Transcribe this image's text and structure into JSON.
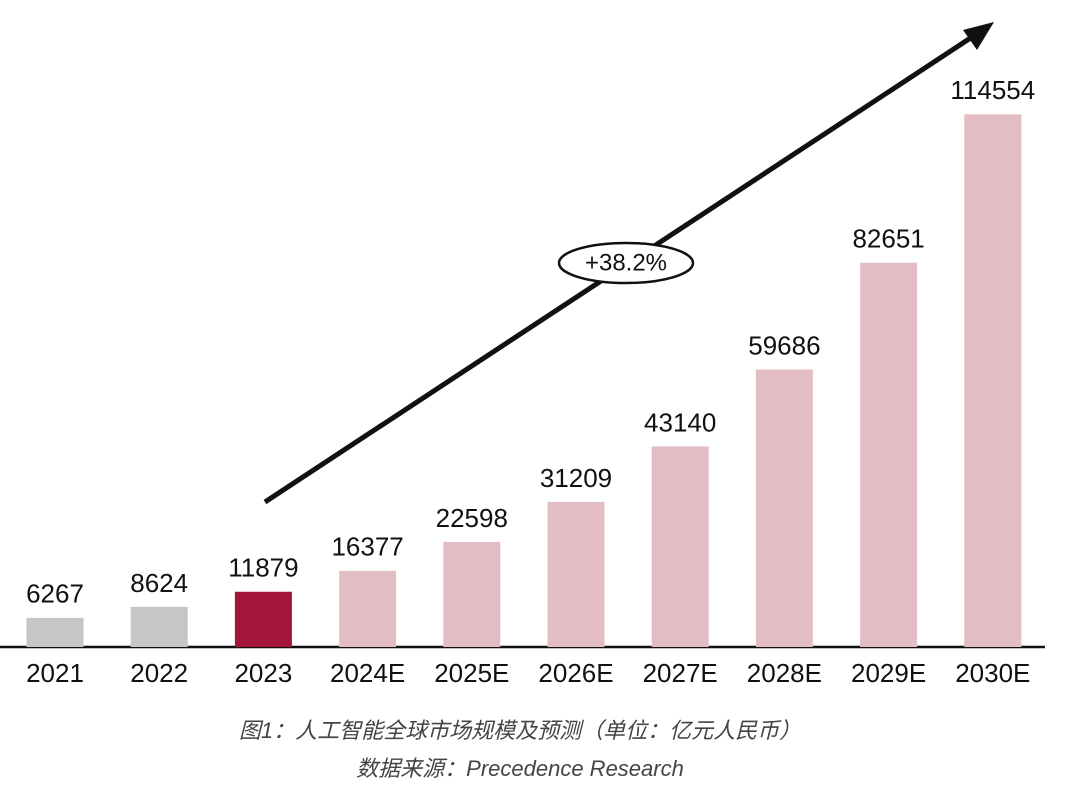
{
  "chart_data": {
    "type": "bar",
    "categories": [
      "2021",
      "2022",
      "2023",
      "2024E",
      "2025E",
      "2026E",
      "2027E",
      "2028E",
      "2029E",
      "2030E"
    ],
    "values": [
      6267,
      8624,
      11879,
      16377,
      22598,
      31209,
      43140,
      59686,
      82651,
      114554
    ],
    "colors": [
      "#c6c6c6",
      "#c6c6c6",
      "#a3153a",
      "#e3bdc4",
      "#e3bdc4",
      "#e3bdc4",
      "#e3bdc4",
      "#e3bdc4",
      "#e3bdc4",
      "#e3bdc4"
    ],
    "ylim": [
      0,
      120000
    ],
    "annotation": "+38.2%",
    "caption": "图1：人工智能全球市场规模及预测（单位：亿元人民币）",
    "source": "数据来源：Precedence Research"
  }
}
